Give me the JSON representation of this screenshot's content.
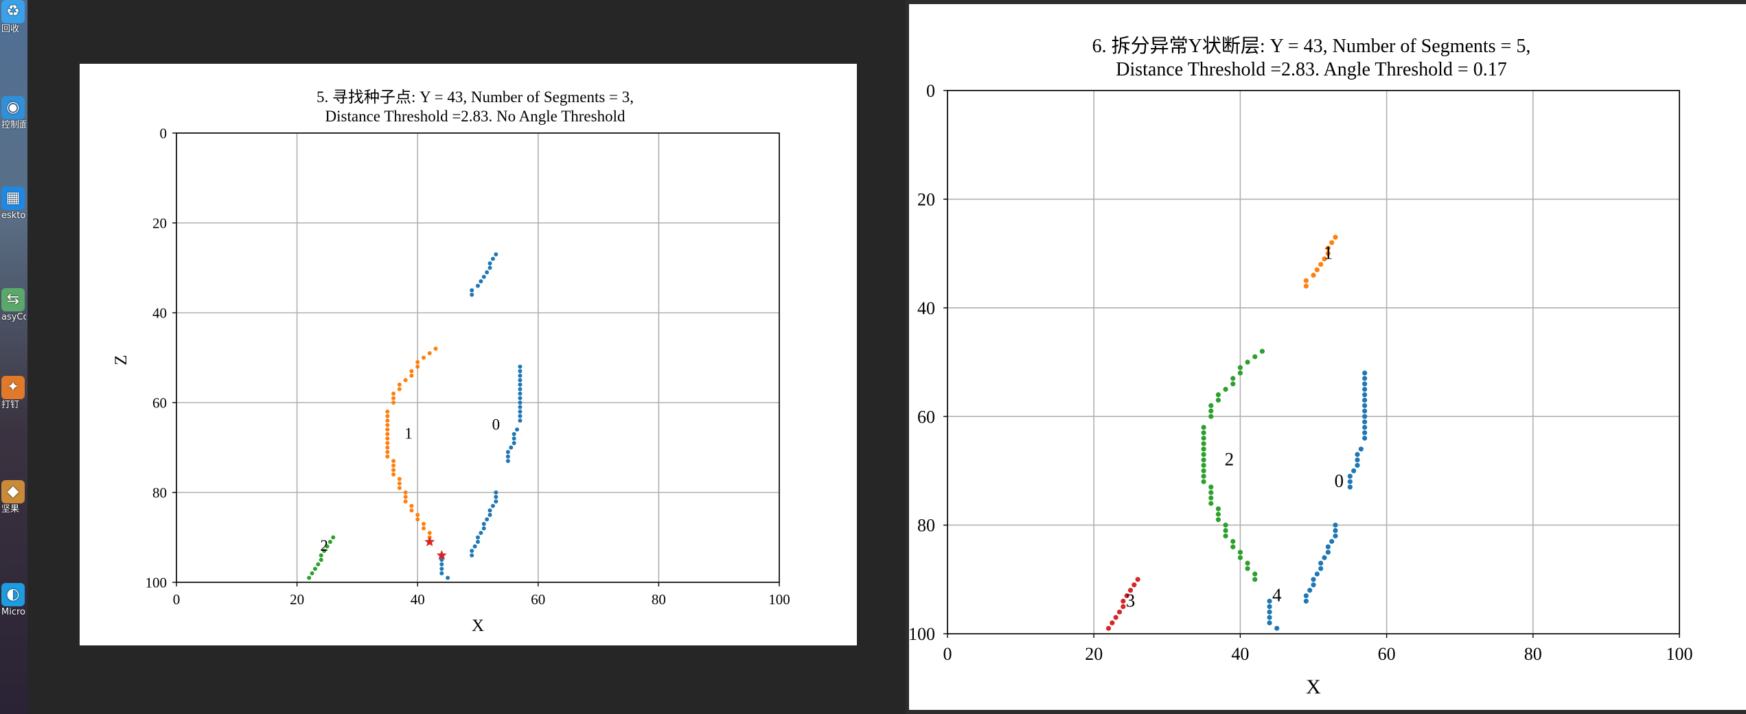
{
  "desktop": {
    "icons": [
      {
        "label": "回收",
        "icon": "recycle-bin-icon",
        "color": "#3aa0e8"
      },
      {
        "label": "控制面",
        "icon": "control-panel-icon",
        "color": "#2f8fd8"
      },
      {
        "label": "eskto 快捷方",
        "icon": "windows-grid-icon",
        "color": "#1e88e5"
      },
      {
        "label": "asyCo",
        "icon": "easyconnect-icon",
        "color": "#5aa86a"
      },
      {
        "label": "打钉",
        "icon": "dingtalk-icon",
        "color": "#e07a2a"
      },
      {
        "label": "坚果",
        "icon": "jianguoyun-icon",
        "color": "#c98a3a"
      },
      {
        "label": "Micros Edg",
        "icon": "edge-icon",
        "color": "#1f9be0"
      }
    ]
  },
  "figure5": {
    "title_line1": "5. 寻找种子点: Y = 43, Number of Segments = 3,",
    "title_line2": "Distance Threshold =2.83. No Angle Threshold",
    "xlabel": "X",
    "ylabel": "Z"
  },
  "figure6": {
    "title_line1": "6. 拆分异常Y状断层: Y = 43, Number of Segments = 5,",
    "title_line2": "Distance Threshold =2.83. Angle Threshold = 0.17",
    "xlabel": "X",
    "ylabel": ""
  },
  "chart_data": [
    {
      "type": "scatter",
      "title": "5. 寻找种子点: Y = 43, Number of Segments = 3, Distance Threshold =2.83. No Angle Threshold",
      "xlabel": "X",
      "ylabel": "Z",
      "xlim": [
        0,
        100
      ],
      "ylim": [
        100,
        0
      ],
      "xticks": [
        "0",
        "20",
        "40",
        "60",
        "80",
        "100"
      ],
      "yticks": [
        "0",
        "20",
        "40",
        "60",
        "80",
        "100"
      ],
      "grid": true,
      "colors": {
        "0": "#1f77b4",
        "1": "#ff7f0e",
        "2": "#2ca02c",
        "seed": "#d62728"
      },
      "series": [
        {
          "name": "0",
          "label_pos": [
            53,
            66
          ],
          "points": [
            [
              53,
              27
            ],
            [
              52.5,
              28
            ],
            [
              52,
              29
            ],
            [
              52,
              30
            ],
            [
              51.5,
              31
            ],
            [
              51,
              32
            ],
            [
              50.5,
              33
            ],
            [
              50,
              34
            ],
            [
              49,
              35
            ],
            [
              49,
              36
            ],
            [
              57,
              52
            ],
            [
              57,
              53
            ],
            [
              57,
              54
            ],
            [
              57,
              55
            ],
            [
              57,
              56
            ],
            [
              57,
              57
            ],
            [
              57,
              58
            ],
            [
              57,
              59
            ],
            [
              57,
              60
            ],
            [
              57,
              61
            ],
            [
              57,
              62
            ],
            [
              57,
              63
            ],
            [
              57,
              64
            ],
            [
              56.5,
              66
            ],
            [
              56,
              67
            ],
            [
              56,
              68
            ],
            [
              56,
              69
            ],
            [
              55.5,
              70
            ],
            [
              55,
              71
            ],
            [
              55,
              72
            ],
            [
              55,
              73
            ],
            [
              53,
              80
            ],
            [
              53,
              81
            ],
            [
              53,
              82
            ],
            [
              52.5,
              83
            ],
            [
              52,
              84
            ],
            [
              52,
              85
            ],
            [
              51.5,
              86
            ],
            [
              51,
              87
            ],
            [
              51,
              88
            ],
            [
              50.5,
              89
            ],
            [
              50,
              90
            ],
            [
              50,
              91
            ],
            [
              49.5,
              92
            ],
            [
              49,
              93
            ],
            [
              49,
              94
            ],
            [
              44,
              94
            ],
            [
              44,
              95
            ],
            [
              44,
              96
            ],
            [
              44,
              97
            ],
            [
              44,
              98
            ],
            [
              45,
              99
            ]
          ]
        },
        {
          "name": "1",
          "label_pos": [
            38.5,
            68
          ],
          "points": [
            [
              43,
              48
            ],
            [
              42,
              49
            ],
            [
              41,
              50
            ],
            [
              40,
              51
            ],
            [
              40,
              52
            ],
            [
              39,
              53
            ],
            [
              39,
              54
            ],
            [
              38,
              55
            ],
            [
              37,
              56
            ],
            [
              37,
              57
            ],
            [
              36,
              58
            ],
            [
              36,
              59
            ],
            [
              36,
              60
            ],
            [
              35,
              62
            ],
            [
              35,
              63
            ],
            [
              35,
              64
            ],
            [
              35,
              65
            ],
            [
              35,
              66
            ],
            [
              35,
              67
            ],
            [
              35,
              68
            ],
            [
              35,
              69
            ],
            [
              35,
              70
            ],
            [
              35,
              71
            ],
            [
              35,
              72
            ],
            [
              36,
              73
            ],
            [
              36,
              74
            ],
            [
              36,
              75
            ],
            [
              36,
              76
            ],
            [
              37,
              77
            ],
            [
              37,
              78
            ],
            [
              37,
              79
            ],
            [
              38,
              80
            ],
            [
              38,
              81
            ],
            [
              38,
              82
            ],
            [
              39,
              83
            ],
            [
              39,
              84
            ],
            [
              40,
              85
            ],
            [
              40,
              86
            ],
            [
              41,
              87
            ],
            [
              41,
              88
            ],
            [
              42,
              89
            ],
            [
              42,
              90
            ]
          ]
        },
        {
          "name": "2",
          "label_pos": [
            24.5,
            93
          ],
          "points": [
            [
              26,
              90
            ],
            [
              25.5,
              91
            ],
            [
              25,
              92
            ],
            [
              24.5,
              93
            ],
            [
              24,
              94
            ],
            [
              24,
              95
            ],
            [
              23.5,
              96
            ],
            [
              23,
              97
            ],
            [
              22.5,
              98
            ],
            [
              22,
              99
            ]
          ]
        },
        {
          "name": "seed",
          "marker": "star",
          "points": [
            [
              42,
              91
            ],
            [
              44,
              94
            ]
          ]
        }
      ]
    },
    {
      "type": "scatter",
      "title": "6. 拆分异常Y状断层: Y = 43, Number of Segments = 5, Distance Threshold =2.83. Angle Threshold = 0.17",
      "xlabel": "X",
      "ylabel": "",
      "xlim": [
        0,
        100
      ],
      "ylim": [
        100,
        0
      ],
      "xticks": [
        "0",
        "20",
        "40",
        "60",
        "80",
        "100"
      ],
      "yticks": [
        "0",
        "20",
        "40",
        "60",
        "80",
        "100"
      ],
      "grid": true,
      "colors": {
        "0": "#1f77b4",
        "1": "#ff7f0e",
        "2": "#2ca02c",
        "3": "#d62728",
        "4": "#1f77b4"
      },
      "series": [
        {
          "name": "0",
          "label_pos": [
            53.5,
            73
          ],
          "points": [
            [
              57,
              52
            ],
            [
              57,
              53
            ],
            [
              57,
              54
            ],
            [
              57,
              55
            ],
            [
              57,
              56
            ],
            [
              57,
              57
            ],
            [
              57,
              58
            ],
            [
              57,
              59
            ],
            [
              57,
              60
            ],
            [
              57,
              61
            ],
            [
              57,
              62
            ],
            [
              57,
              63
            ],
            [
              57,
              64
            ],
            [
              56.5,
              66
            ],
            [
              56,
              67
            ],
            [
              56,
              68
            ],
            [
              56,
              69
            ],
            [
              55.5,
              70
            ],
            [
              55,
              71
            ],
            [
              55,
              72
            ],
            [
              55,
              73
            ],
            [
              53,
              80
            ],
            [
              53,
              81
            ],
            [
              53,
              82
            ],
            [
              52.5,
              83
            ],
            [
              52,
              84
            ],
            [
              52,
              85
            ],
            [
              51.5,
              86
            ],
            [
              51,
              87
            ],
            [
              51,
              88
            ],
            [
              50.5,
              89
            ],
            [
              50,
              90
            ],
            [
              50,
              91
            ],
            [
              49.5,
              92
            ],
            [
              49,
              93
            ],
            [
              49,
              94
            ]
          ]
        },
        {
          "name": "1",
          "label_pos": [
            52,
            31
          ],
          "points": [
            [
              53,
              27
            ],
            [
              52.5,
              28
            ],
            [
              52,
              29
            ],
            [
              52,
              30
            ],
            [
              51.5,
              31
            ],
            [
              51,
              32
            ],
            [
              50.5,
              33
            ],
            [
              50,
              34
            ],
            [
              49,
              35
            ],
            [
              49,
              36
            ]
          ]
        },
        {
          "name": "2",
          "label_pos": [
            38.5,
            69
          ],
          "points": [
            [
              43,
              48
            ],
            [
              42,
              49
            ],
            [
              41,
              50
            ],
            [
              40,
              51
            ],
            [
              40,
              52
            ],
            [
              39,
              53
            ],
            [
              39,
              54
            ],
            [
              38,
              55
            ],
            [
              37,
              56
            ],
            [
              37,
              57
            ],
            [
              36,
              58
            ],
            [
              36,
              59
            ],
            [
              36,
              60
            ],
            [
              35,
              62
            ],
            [
              35,
              63
            ],
            [
              35,
              64
            ],
            [
              35,
              65
            ],
            [
              35,
              66
            ],
            [
              35,
              67
            ],
            [
              35,
              68
            ],
            [
              35,
              69
            ],
            [
              35,
              70
            ],
            [
              35,
              71
            ],
            [
              35,
              72
            ],
            [
              36,
              73
            ],
            [
              36,
              74
            ],
            [
              36,
              75
            ],
            [
              36,
              76
            ],
            [
              37,
              77
            ],
            [
              37,
              78
            ],
            [
              37,
              79
            ],
            [
              38,
              80
            ],
            [
              38,
              81
            ],
            [
              38,
              82
            ],
            [
              39,
              83
            ],
            [
              39,
              84
            ],
            [
              40,
              85
            ],
            [
              40,
              86
            ],
            [
              41,
              87
            ],
            [
              41,
              88
            ],
            [
              42,
              89
            ],
            [
              42,
              90
            ]
          ]
        },
        {
          "name": "3",
          "label_pos": [
            25,
            95
          ],
          "points": [
            [
              26,
              90
            ],
            [
              25.5,
              91
            ],
            [
              25,
              92
            ],
            [
              24.5,
              93
            ],
            [
              24,
              94
            ],
            [
              24,
              95
            ],
            [
              23.5,
              96
            ],
            [
              23,
              97
            ],
            [
              22.5,
              98
            ],
            [
              22,
              99
            ]
          ]
        },
        {
          "name": "4",
          "label_pos": [
            45,
            94
          ],
          "points": [
            [
              44,
              94
            ],
            [
              44,
              95
            ],
            [
              44,
              96
            ],
            [
              44,
              97
            ],
            [
              44,
              98
            ],
            [
              45,
              99
            ]
          ]
        }
      ]
    }
  ]
}
